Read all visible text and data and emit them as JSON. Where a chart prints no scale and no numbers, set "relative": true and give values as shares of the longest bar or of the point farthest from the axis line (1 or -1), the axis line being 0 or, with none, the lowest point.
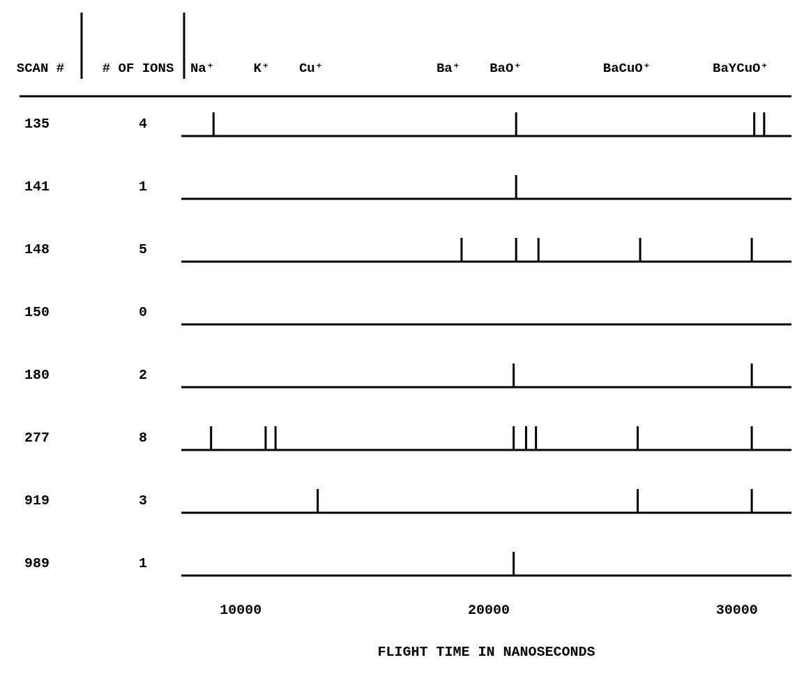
{
  "chart_data": [
    {
      "type": "bar",
      "relative": true,
      "annotations": [
        "SCAN #",
        "# OF IONS",
        "Na⁺",
        "K⁺",
        "Cu⁺",
        "Ba⁺",
        "BaO⁺",
        "BaCuO⁺",
        "BaYCuO⁺"
      ],
      "ylabel": "135",
      "y2label": "4",
      "color": "#000000",
      "xlim": [
        7600,
        32200
      ],
      "x": [
        8900,
        21100,
        30700,
        31100
      ],
      "values": [
        1,
        1,
        1,
        1
      ]
    },
    {
      "type": "bar",
      "relative": true,
      "ylabel": "141",
      "y2label": "1",
      "color": "#000000",
      "xlim": [
        7600,
        32200
      ],
      "x": [
        21100
      ],
      "values": [
        1
      ]
    },
    {
      "type": "bar",
      "relative": true,
      "ylabel": "148",
      "y2label": "5",
      "color": "#000000",
      "xlim": [
        7600,
        32200
      ],
      "x": [
        18900,
        21100,
        22000,
        26100,
        30600
      ],
      "values": [
        1,
        1,
        1,
        1,
        1
      ]
    },
    {
      "type": "other",
      "ylabel": "150",
      "y2label": "0"
    },
    {
      "type": "bar",
      "relative": true,
      "ylabel": "180",
      "y2label": "2",
      "color": "#000000",
      "xlim": [
        7600,
        32200
      ],
      "x": [
        21000,
        30600
      ],
      "values": [
        1,
        1
      ]
    },
    {
      "type": "bar",
      "relative": true,
      "ylabel": "277",
      "y2label": "8",
      "color": "#000000",
      "xlim": [
        7600,
        32200
      ],
      "x": [
        8800,
        11000,
        11400,
        21000,
        21500,
        21900,
        26000,
        30600
      ],
      "values": [
        1,
        1,
        1,
        1,
        1,
        1,
        1,
        1
      ]
    },
    {
      "type": "bar",
      "relative": true,
      "ylabel": "919",
      "y2label": "3",
      "color": "#000000",
      "xlim": [
        7600,
        32200
      ],
      "x": [
        13100,
        26000,
        30600
      ],
      "values": [
        1,
        1,
        1
      ]
    },
    {
      "type": "bar",
      "relative": true,
      "ylabel": "989",
      "y2label": "1",
      "color": "#000000",
      "xlim": [
        7600,
        32200
      ],
      "xticks": [
        10000,
        20000,
        30000
      ],
      "xlabel": "FLIGHT TIME IN NANOSECONDS",
      "x": [
        21000
      ],
      "values": [
        1
      ]
    }
  ]
}
